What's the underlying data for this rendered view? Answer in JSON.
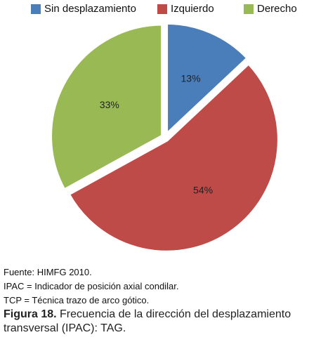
{
  "chart_data": {
    "type": "pie",
    "title": "",
    "legend_position": "top",
    "slices": [
      {
        "label": "Sin desplazamiento",
        "value": 13,
        "display": "13%",
        "color": "#4a7ebb"
      },
      {
        "label": "Izquierdo",
        "value": 54,
        "display": "54%",
        "color": "#be4b48"
      },
      {
        "label": "Derecho",
        "value": 33,
        "display": "33%",
        "color": "#98b954"
      }
    ]
  },
  "notes": {
    "source": "Fuente: HIMFG 2010.",
    "ipac": "IPAC = Indicador de posición axial condilar.",
    "tcp": "TCP = Técnica trazo de arco gótico."
  },
  "caption": {
    "label": "Figura 18.",
    "text": " Frecuencia de la dirección del desplazamiento transversal (IPAC): TAG."
  }
}
